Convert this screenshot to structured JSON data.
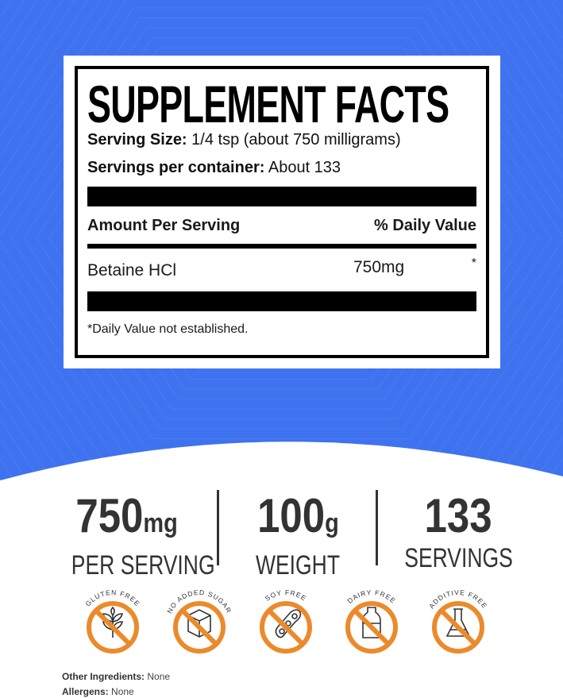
{
  "colors": {
    "background": "#3f72ef",
    "badge": "#ec8a2b"
  },
  "facts": {
    "title": "SUPPLEMENT FACTS",
    "serving_size_label": "Serving Size:",
    "serving_size_value": "1/4 tsp (about 750 milligrams)",
    "servings_label": "Servings per container:",
    "servings_value": "About 133",
    "col_amount": "Amount Per Serving",
    "col_dv": "% Daily Value",
    "ingredient": "Betaine HCl",
    "ingredient_amount": "750mg",
    "ingredient_dv": "*",
    "note": "*Daily Value not established."
  },
  "stats": [
    {
      "value": "750",
      "unit": "mg",
      "label": "PER SERVING"
    },
    {
      "value": "100",
      "unit": "g",
      "label": "WEIGHT"
    },
    {
      "value": "133",
      "unit": "",
      "label": "SERVINGS"
    }
  ],
  "badges": [
    {
      "label": "GLUTEN FREE",
      "icon": "wheat-icon"
    },
    {
      "label": "NO ADDED SUGAR",
      "icon": "sugar-cube-icon"
    },
    {
      "label": "SOY FREE",
      "icon": "soybean-icon"
    },
    {
      "label": "DAIRY FREE",
      "icon": "milk-bottle-icon"
    },
    {
      "label": "ADDITIVE FREE",
      "icon": "flask-icon"
    }
  ],
  "footer": {
    "other_label": "Other Ingredients:",
    "other_value": "None",
    "allergens_label": "Allergens:",
    "allergens_value": "None"
  }
}
